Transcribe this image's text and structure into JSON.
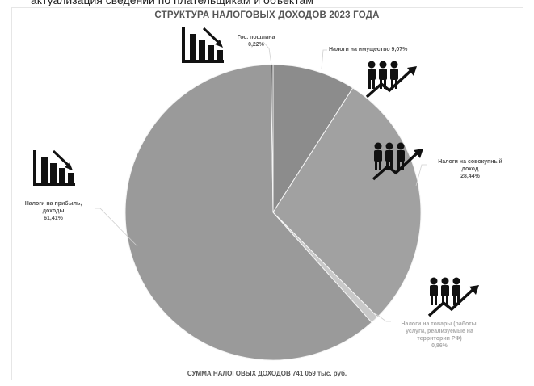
{
  "page": {
    "top_text": "актуализация сведений по плательщикам и объектам"
  },
  "chart_data": {
    "type": "pie",
    "title": "СТРУКТУРА НАЛОГОВЫХ ДОХОДОВ 2023 ГОДА",
    "footer": "СУММА НАЛОГОВЫХ ДОХОДОВ 741 059 тыс. руб.",
    "slices": [
      {
        "label_lines": [
          "Налоги на имущество 9,07%"
        ],
        "value": 9.07,
        "color": "#8c8c8c"
      },
      {
        "label_lines": [
          "Налоги на совокупный",
          "доход",
          "28,44%"
        ],
        "value": 28.44,
        "color": "#a1a1a1"
      },
      {
        "label_lines": [
          "Налоги на товары (работы,",
          "услуги, реализуемые на",
          "территории РФ)",
          "0,86%"
        ],
        "value": 0.86,
        "color": "#c8c8c8"
      },
      {
        "label_lines": [
          "Налоги на прибыль,",
          "доходы",
          "61,41%"
        ],
        "value": 61.41,
        "color": "#9a9a9a"
      },
      {
        "label_lines": [
          "Гос. пошлина",
          "0,22%"
        ],
        "value": 0.22,
        "color": "#6a6a6a"
      }
    ],
    "legend": "none",
    "icons": [
      "bar-chart-down-icon",
      "people-growth-icon",
      "people-growth-icon",
      "bar-chart-down-icon",
      "people-growth-icon"
    ]
  }
}
